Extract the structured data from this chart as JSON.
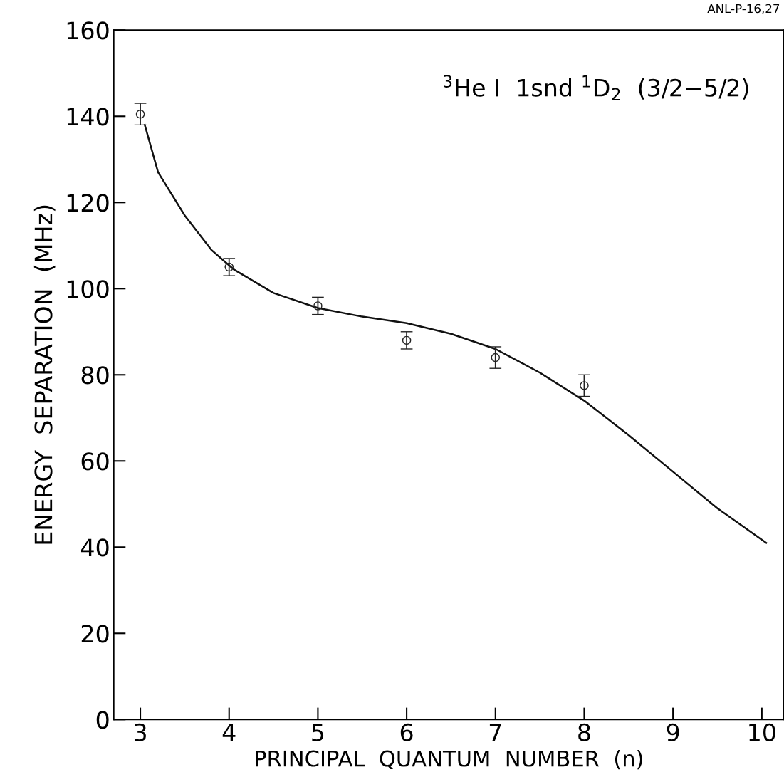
{
  "chart_data": {
    "type": "scatter",
    "xlabel": "PRINCIPAL  QUANTUM  NUMBER  (n)",
    "ylabel": "ENERGY  SEPARATION  (MHz)",
    "annotations": [
      "ANL-P-16,27",
      "$^{3}$He I  1snd $^{1}$D$_{2}$  (3/2−5/2)"
    ],
    "xlim": [
      2.7,
      10.25
    ],
    "ylim": [
      0,
      160
    ],
    "xticks": [
      3,
      4,
      5,
      6,
      7,
      8,
      9,
      10
    ],
    "yticks": [
      0,
      20,
      40,
      60,
      80,
      100,
      120,
      140,
      160
    ],
    "grid": false,
    "legend": false,
    "series": [
      {
        "color": "#222222",
        "marker": "circle",
        "x": [
          3,
          4,
          5,
          6,
          7,
          8
        ],
        "values": [
          140.5,
          105,
          96,
          88,
          84,
          77.5
        ],
        "errors": [
          2.5,
          2,
          2,
          2,
          2.5,
          2.5
        ]
      },
      {
        "type": "line",
        "color": "#111111",
        "marker": "none",
        "line_style": "solid",
        "x": [
          3.05,
          3.2,
          3.5,
          3.8,
          4.05,
          4.5,
          5,
          5.5,
          6,
          6.5,
          7,
          7.5,
          8,
          8.5,
          9,
          9.5,
          10.05
        ],
        "values": [
          138,
          127,
          117,
          109,
          104.5,
          99,
          95.5,
          93.5,
          92,
          89.5,
          86,
          80.5,
          74,
          66,
          57.5,
          49,
          41
        ]
      }
    ]
  }
}
